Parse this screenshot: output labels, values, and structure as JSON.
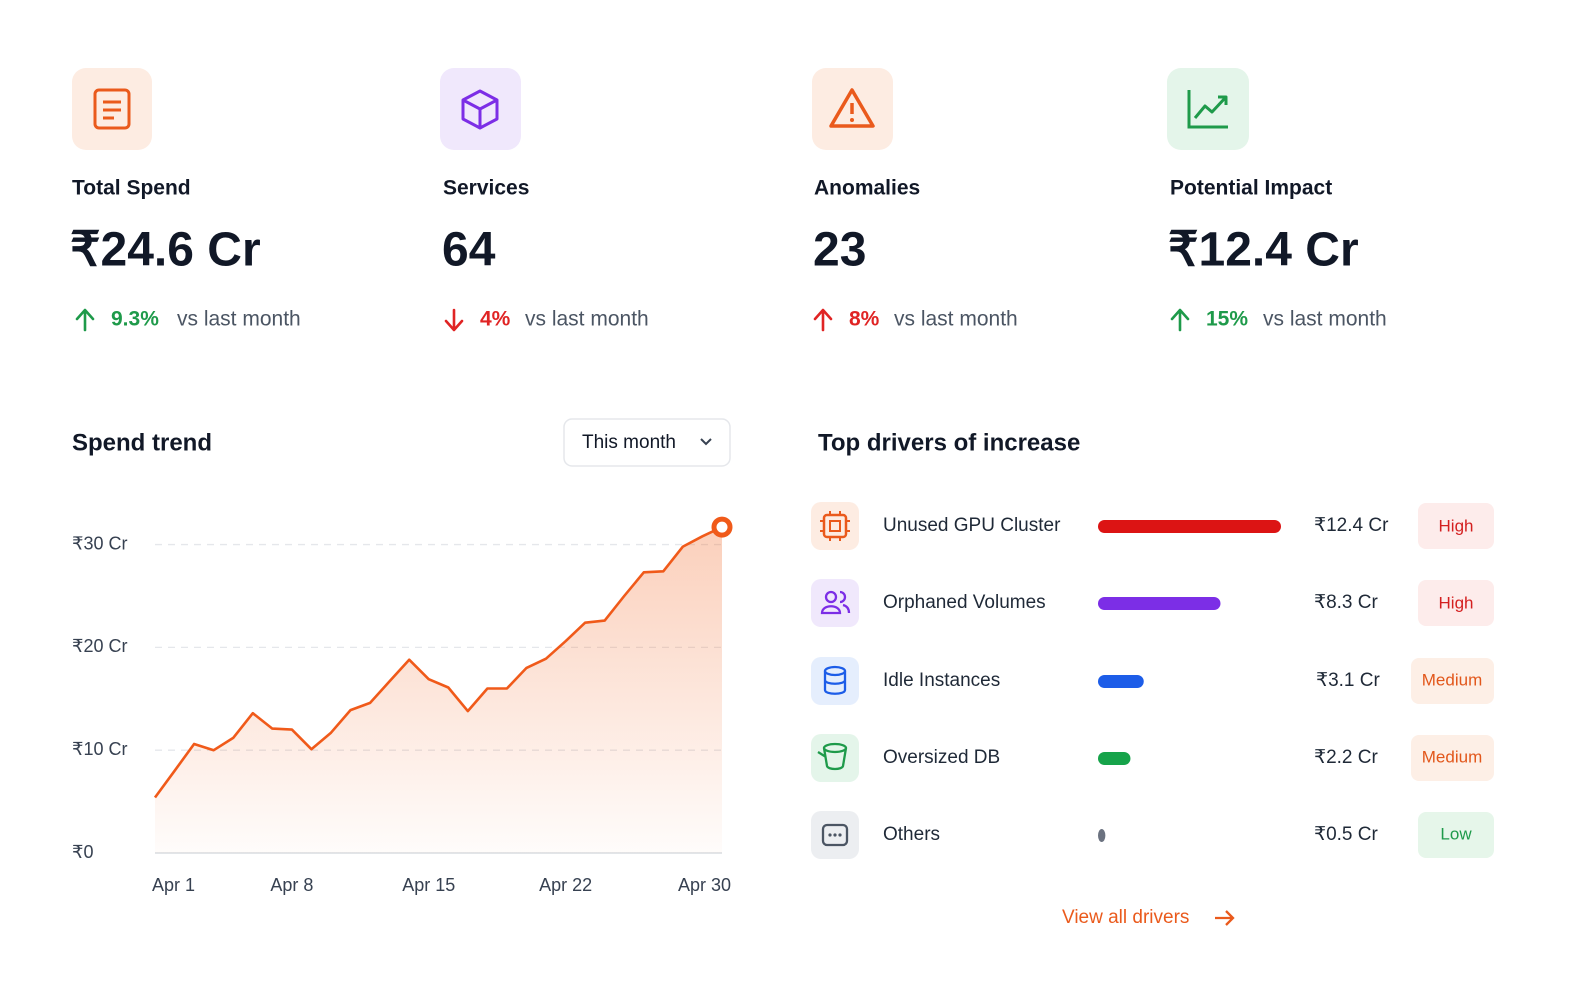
{
  "kpis": [
    {
      "label": "Total Spend",
      "value": "₹24.6 Cr",
      "change": "9.3%",
      "comparison": "vs last month",
      "direction": "up",
      "color": "#1e9a4a"
    },
    {
      "label": "Services",
      "value": "64",
      "change": "4%",
      "comparison": "vs last month",
      "direction": "down",
      "color": "#e02424"
    },
    {
      "label": "Anomalies",
      "value": "23",
      "change": "8%",
      "comparison": "vs last month",
      "direction": "up",
      "color": "#e02424"
    },
    {
      "label": "Potential Impact",
      "value": "₹12.4 Cr",
      "change": "15%",
      "comparison": "vs last month",
      "direction": "up",
      "color": "#1e9a4a"
    }
  ],
  "chart_data": {
    "type": "area",
    "title": "Spend trend",
    "period": "This month",
    "categories": [
      "Apr 1",
      null,
      null,
      null,
      null,
      null,
      null,
      "Apr 8",
      null,
      null,
      null,
      null,
      null,
      null,
      "Apr 15",
      null,
      null,
      null,
      null,
      null,
      null,
      "Apr 22",
      null,
      null,
      null,
      null,
      null,
      null,
      null,
      "Apr 30"
    ],
    "values": [
      5.4,
      8.0,
      10.6,
      10.0,
      11.2,
      13.6,
      12.1,
      12.0,
      10.1,
      11.7,
      13.9,
      14.6,
      16.7,
      18.8,
      16.9,
      16.1,
      13.8,
      16.0,
      16.0,
      18.0,
      18.9,
      20.6,
      22.4,
      22.6,
      25.0,
      27.3,
      27.4,
      29.8,
      30.8,
      31.7
    ],
    "color": "#f05a1a",
    "ylim": [
      0,
      32
    ],
    "yticks": [
      {
        "value": 0,
        "label": "₹0"
      },
      {
        "value": 10,
        "label": "₹10 Cr"
      },
      {
        "value": 20,
        "label": "₹20 Cr"
      },
      {
        "value": 30,
        "label": "₹30 Cr"
      }
    ],
    "grid": true
  },
  "drivers": {
    "title": "Top drivers of increase",
    "categories": [
      "Unused GPU Cluster",
      "Orphaned Volumes",
      "Idle Instances",
      "Oversized DB",
      "Others"
    ],
    "values": [
      12.4,
      8.3,
      3.1,
      2.2,
      0.5
    ],
    "value_labels": [
      "₹12.4 Cr",
      "₹8.3 Cr",
      "₹3.1 Cr",
      "₹2.2 Cr",
      "₹0.5 Cr"
    ],
    "colors": [
      "#dc1414",
      "#7c2ee6",
      "#1d5de8",
      "#16a34a",
      "#6b7280"
    ],
    "severity": [
      "High",
      "High",
      "Medium",
      "Medium",
      "Low"
    ],
    "link": "View all drivers"
  }
}
